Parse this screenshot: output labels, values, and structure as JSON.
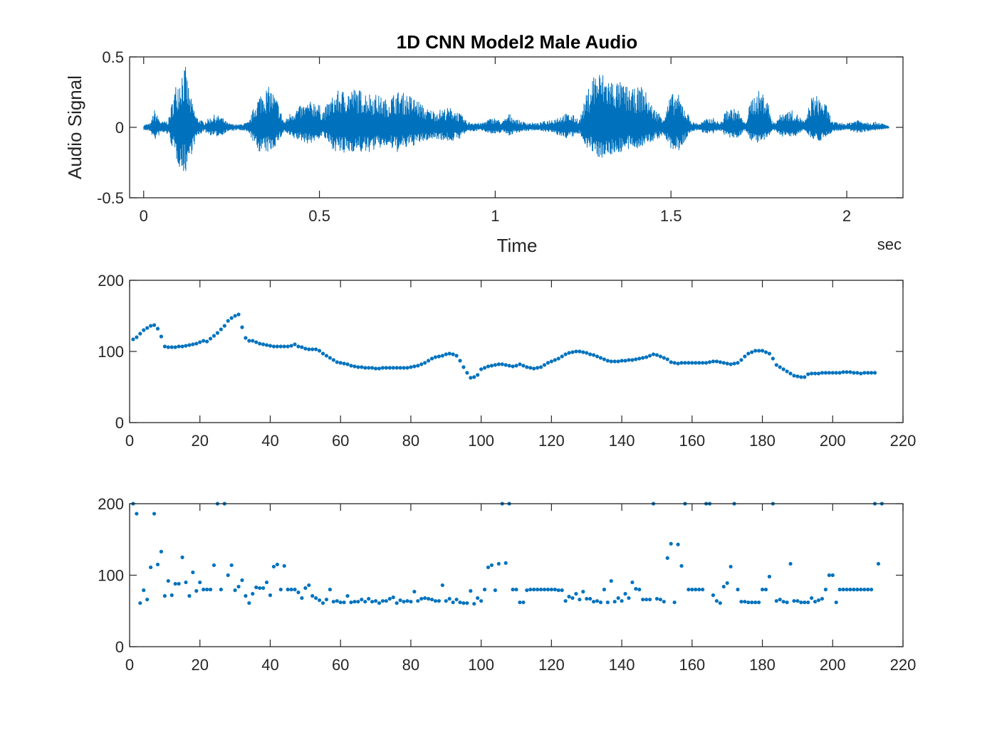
{
  "figure": {
    "background": "#ffffff",
    "series_color": "#0072BD"
  },
  "chart_data": [
    {
      "type": "line",
      "title": "1D CNN Model2 Male Audio",
      "xlabel": "Time",
      "x_unit_label": "sec",
      "ylabel": "Audio Signal",
      "xlim": [
        -0.04,
        2.16
      ],
      "ylim": [
        -0.5,
        0.5
      ],
      "xticks": [
        0,
        0.5,
        1,
        1.5,
        2
      ],
      "xtick_labels": [
        "0",
        "0.5",
        "1",
        "1.5",
        "2"
      ],
      "yticks": [
        -0.5,
        0,
        0.5
      ],
      "ytick_labels": [
        "-0.5",
        "0",
        "0.5"
      ],
      "grid": false,
      "x_range": [
        0,
        2.12
      ],
      "envelope": {
        "time": [
          0,
          0.02,
          0.03,
          0.05,
          0.07,
          0.09,
          0.11,
          0.12,
          0.13,
          0.15,
          0.17,
          0.2,
          0.22,
          0.24,
          0.27,
          0.3,
          0.32,
          0.34,
          0.36,
          0.38,
          0.4,
          0.42,
          0.45,
          0.47,
          0.49,
          0.51,
          0.53,
          0.55,
          0.57,
          0.6,
          0.63,
          0.66,
          0.69,
          0.72,
          0.75,
          0.78,
          0.8,
          0.83,
          0.86,
          0.88,
          0.9,
          0.92,
          0.94,
          0.96,
          0.98,
          1.0,
          1.02,
          1.04,
          1.06,
          1.08,
          1.12,
          1.16,
          1.2,
          1.22,
          1.24,
          1.26,
          1.28,
          1.3,
          1.33,
          1.36,
          1.39,
          1.42,
          1.45,
          1.48,
          1.5,
          1.52,
          1.54,
          1.56,
          1.58,
          1.6,
          1.62,
          1.64,
          1.66,
          1.69,
          1.71,
          1.73,
          1.75,
          1.77,
          1.79,
          1.82,
          1.85,
          1.88,
          1.9,
          1.92,
          1.94,
          1.96,
          2.0,
          2.03,
          2.06,
          2.09,
          2.12
        ],
        "upper": [
          0.02,
          0.03,
          0.13,
          0.04,
          0.05,
          0.3,
          0.44,
          0.43,
          0.25,
          0.08,
          0.04,
          0.09,
          0.08,
          0.03,
          0.02,
          0.04,
          0.2,
          0.28,
          0.29,
          0.2,
          0.04,
          0.12,
          0.16,
          0.18,
          0.2,
          0.12,
          0.2,
          0.26,
          0.27,
          0.28,
          0.26,
          0.24,
          0.2,
          0.26,
          0.24,
          0.2,
          0.14,
          0.12,
          0.14,
          0.14,
          0.1,
          0.04,
          0.04,
          0.03,
          0.06,
          0.07,
          0.04,
          0.1,
          0.06,
          0.04,
          0.03,
          0.06,
          0.1,
          0.09,
          0.06,
          0.24,
          0.4,
          0.4,
          0.35,
          0.32,
          0.27,
          0.3,
          0.14,
          0.08,
          0.24,
          0.24,
          0.14,
          0.04,
          0.03,
          0.06,
          0.07,
          0.03,
          0.14,
          0.13,
          0.03,
          0.22,
          0.26,
          0.25,
          0.03,
          0.12,
          0.12,
          0.04,
          0.22,
          0.23,
          0.17,
          0.04,
          0.03,
          0.06,
          0.04,
          0.04,
          0.01
        ],
        "lower": [
          -0.02,
          -0.03,
          -0.1,
          -0.04,
          -0.05,
          -0.22,
          -0.33,
          -0.32,
          -0.24,
          -0.08,
          -0.03,
          -0.07,
          -0.06,
          -0.03,
          -0.02,
          -0.04,
          -0.16,
          -0.19,
          -0.18,
          -0.12,
          -0.03,
          -0.08,
          -0.1,
          -0.12,
          -0.1,
          -0.06,
          -0.14,
          -0.18,
          -0.2,
          -0.17,
          -0.19,
          -0.16,
          -0.14,
          -0.18,
          -0.15,
          -0.12,
          -0.1,
          -0.08,
          -0.1,
          -0.1,
          -0.08,
          -0.03,
          -0.03,
          -0.02,
          -0.04,
          -0.06,
          -0.03,
          -0.06,
          -0.04,
          -0.03,
          -0.02,
          -0.04,
          -0.08,
          -0.07,
          -0.05,
          -0.14,
          -0.2,
          -0.22,
          -0.2,
          -0.18,
          -0.16,
          -0.14,
          -0.1,
          -0.06,
          -0.16,
          -0.18,
          -0.1,
          -0.03,
          -0.02,
          -0.05,
          -0.05,
          -0.02,
          -0.08,
          -0.08,
          -0.02,
          -0.1,
          -0.12,
          -0.1,
          -0.02,
          -0.07,
          -0.07,
          -0.02,
          -0.08,
          -0.1,
          -0.08,
          -0.03,
          -0.02,
          -0.04,
          -0.03,
          -0.02,
          -0.01
        ]
      }
    },
    {
      "type": "scatter",
      "title": "",
      "xlabel": "",
      "ylabel": "",
      "xlim": [
        0,
        220
      ],
      "ylim": [
        0,
        200
      ],
      "xticks": [
        0,
        20,
        40,
        60,
        80,
        100,
        120,
        140,
        160,
        180,
        200,
        220
      ],
      "xtick_labels": [
        "0",
        "20",
        "40",
        "60",
        "80",
        "100",
        "120",
        "140",
        "160",
        "180",
        "200",
        "220"
      ],
      "yticks": [
        0,
        100,
        200
      ],
      "ytick_labels": [
        "0",
        "100",
        "200"
      ],
      "grid": false,
      "y": [
        117,
        120,
        125,
        130,
        133,
        136,
        137,
        132,
        121,
        107,
        106,
        106,
        106,
        107,
        107,
        108,
        109,
        110,
        111,
        113,
        115,
        114,
        118,
        122,
        126,
        131,
        136,
        143,
        147,
        150,
        152,
        134,
        119,
        115,
        115,
        113,
        111,
        110,
        109,
        108,
        107,
        107,
        107,
        107,
        107,
        108,
        110,
        107,
        106,
        104,
        103,
        103,
        103,
        101,
        97,
        94,
        91,
        88,
        85,
        84,
        83,
        82,
        80,
        79,
        78,
        78,
        77,
        77,
        77,
        76,
        76,
        77,
        77,
        77,
        77,
        77,
        77,
        77,
        77,
        78,
        79,
        80,
        82,
        84,
        87,
        90,
        92,
        93,
        94,
        96,
        97,
        96,
        94,
        87,
        78,
        70,
        63,
        64,
        67,
        75,
        77,
        79,
        80,
        81,
        82,
        82,
        81,
        80,
        79,
        80,
        82,
        80,
        78,
        77,
        76,
        77,
        78,
        81,
        84,
        86,
        88,
        90,
        93,
        96,
        98,
        99,
        100,
        100,
        99,
        98,
        96,
        95,
        93,
        91,
        89,
        87,
        86,
        86,
        86,
        87,
        87,
        88,
        88,
        89,
        90,
        91,
        92,
        94,
        96,
        95,
        93,
        91,
        89,
        85,
        84,
        83,
        84,
        84,
        84,
        84,
        84,
        84,
        84,
        84,
        85,
        86,
        86,
        85,
        84,
        83,
        82,
        83,
        84,
        88,
        93,
        97,
        99,
        101,
        101,
        101,
        99,
        97,
        90,
        81,
        78,
        75,
        72,
        69,
        66,
        65,
        64,
        64,
        68,
        69,
        69,
        69,
        70,
        70,
        70,
        70,
        70,
        70,
        71,
        71,
        71,
        70,
        70,
        69,
        70,
        70,
        70,
        70
      ]
    },
    {
      "type": "scatter",
      "title": "",
      "xlabel": "",
      "ylabel": "",
      "xlim": [
        0,
        220
      ],
      "ylim": [
        0,
        200
      ],
      "xticks": [
        0,
        20,
        40,
        60,
        80,
        100,
        120,
        140,
        160,
        180,
        200,
        220
      ],
      "xtick_labels": [
        "0",
        "20",
        "40",
        "60",
        "80",
        "100",
        "120",
        "140",
        "160",
        "180",
        "200",
        "220"
      ],
      "yticks": [
        0,
        100,
        200
      ],
      "ytick_labels": [
        "0",
        "100",
        "200"
      ],
      "grid": false,
      "y": [
        201,
        186,
        61,
        79,
        66,
        111,
        186,
        115,
        133,
        71,
        92,
        72,
        88,
        88,
        125,
        90,
        71,
        104,
        78,
        90,
        80,
        80,
        80,
        114,
        200,
        80,
        200,
        100,
        114,
        79,
        84,
        93,
        71,
        61,
        74,
        83,
        82,
        82,
        90,
        72,
        112,
        115,
        80,
        113,
        80,
        80,
        80,
        76,
        68,
        82,
        86,
        71,
        68,
        65,
        61,
        66,
        80,
        63,
        64,
        62,
        62,
        71,
        62,
        63,
        63,
        66,
        63,
        67,
        63,
        64,
        61,
        64,
        64,
        67,
        69,
        61,
        65,
        63,
        64,
        63,
        77,
        64,
        67,
        68,
        67,
        66,
        64,
        64,
        86,
        64,
        67,
        62,
        66,
        62,
        61,
        61,
        78,
        60,
        68,
        64,
        80,
        111,
        114,
        79,
        116,
        200,
        117,
        200,
        80,
        80,
        62,
        62,
        79,
        80,
        80,
        80,
        80,
        80,
        80,
        80,
        80,
        79,
        79,
        64,
        70,
        68,
        74,
        66,
        77,
        67,
        67,
        63,
        64,
        62,
        80,
        62,
        92,
        63,
        68,
        64,
        74,
        68,
        90,
        81,
        80,
        66,
        66,
        66,
        200,
        67,
        66,
        63,
        124,
        144,
        62,
        143,
        113,
        200,
        80,
        80,
        80,
        80,
        80,
        200,
        200,
        72,
        64,
        61,
        84,
        89,
        112,
        200,
        80,
        63,
        63,
        62,
        62,
        62,
        62,
        80,
        80,
        98,
        200,
        64,
        66,
        63,
        62,
        116,
        64,
        64,
        62,
        62,
        62,
        68,
        63,
        65,
        67,
        80,
        100,
        100,
        62,
        80,
        80,
        80,
        80,
        80,
        80,
        80,
        80,
        80,
        80,
        200,
        116,
        200
      ],
      "y_note": "points at 200 shown on top edge"
    }
  ]
}
